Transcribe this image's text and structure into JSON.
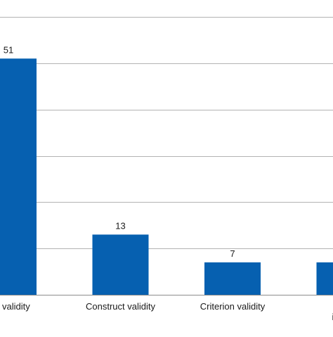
{
  "chart_data": {
    "type": "bar",
    "categories": [
      [
        "ent validity"
      ],
      [
        "Construct validity"
      ],
      [
        "Criterion validity"
      ],
      [
        "No in",
        "inform"
      ]
    ],
    "values": [
      51,
      13,
      7,
      7
    ],
    "value_labels": [
      "51",
      "13",
      "7",
      ""
    ],
    "ylim": [
      0,
      60
    ],
    "grid": true,
    "gridlines_at": [
      0,
      10,
      20,
      30,
      40,
      50,
      60
    ],
    "bar_color": "#0660b0",
    "gridline_color": "#b3b3b3",
    "label_color": "#1a1a1a"
  }
}
